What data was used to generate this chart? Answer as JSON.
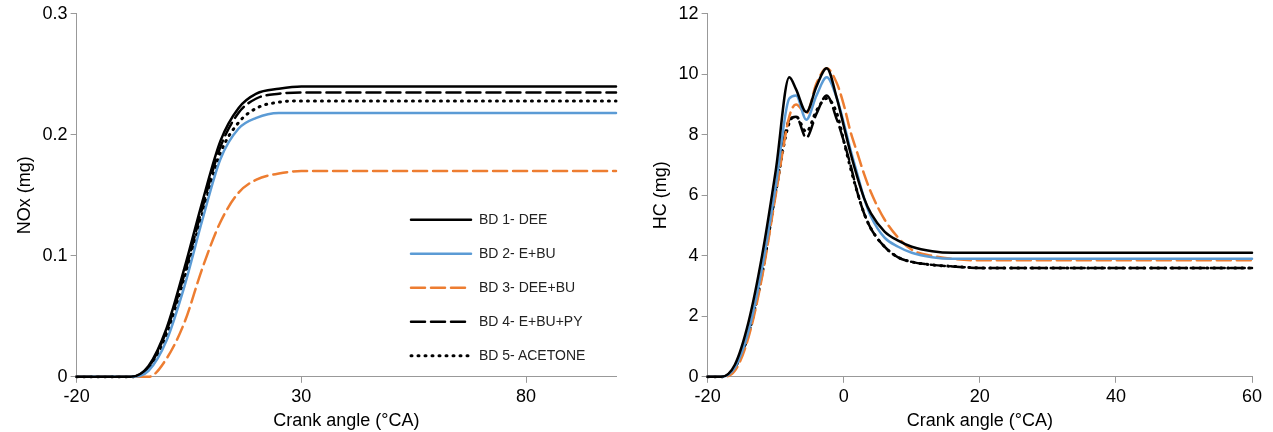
{
  "chart_data": [
    {
      "type": "line",
      "xlabel": "Crank angle (°CA)",
      "ylabel": "NOx (mg)",
      "xlim": [
        -20,
        100
      ],
      "xticks": [
        -20,
        30,
        80
      ],
      "ylim": [
        0,
        0.3
      ],
      "yticks": [
        0,
        0.1,
        0.2,
        0.3
      ],
      "legend": "bottom right",
      "marker": "none",
      "x": [
        -20,
        -8,
        -4,
        0,
        4,
        8,
        12,
        16,
        20,
        25,
        30,
        40,
        60,
        100
      ],
      "series": [
        {
          "name": "BD 1- DEE",
          "color": "#000000",
          "line_style": "solid",
          "values": [
            0,
            0,
            0.009,
            0.04,
            0.09,
            0.145,
            0.195,
            0.222,
            0.234,
            0.238,
            0.24,
            0.24,
            0.24,
            0.24
          ]
        },
        {
          "name": "BD 2- E+BU",
          "color": "#5b9bd5",
          "line_style": "solid",
          "values": [
            0,
            0,
            0.005,
            0.03,
            0.075,
            0.13,
            0.18,
            0.205,
            0.214,
            0.218,
            0.218,
            0.218,
            0.218,
            0.218
          ]
        },
        {
          "name": "BD 3- DEE+BU",
          "color": "#ed7d31",
          "line_style": "dashed",
          "values": [
            0,
            0,
            0,
            0.015,
            0.045,
            0.09,
            0.128,
            0.152,
            0.163,
            0.168,
            0.17,
            0.17,
            0.17,
            0.17
          ]
        },
        {
          "name": "BD 4- E+BU+PY",
          "color": "#000000",
          "line_style": "dashed",
          "values": [
            0,
            0,
            0.008,
            0.038,
            0.085,
            0.14,
            0.19,
            0.218,
            0.23,
            0.234,
            0.235,
            0.235,
            0.235,
            0.235
          ]
        },
        {
          "name": "BD 5- ACETONE",
          "color": "#000000",
          "line_style": "dotted",
          "values": [
            0,
            0,
            0.007,
            0.035,
            0.082,
            0.135,
            0.185,
            0.21,
            0.222,
            0.227,
            0.228,
            0.228,
            0.228,
            0.228
          ]
        }
      ]
    },
    {
      "type": "line",
      "xlabel": "Crank angle (°CA)",
      "ylabel": "HC (mg)",
      "xlim": [
        -20,
        60
      ],
      "xticks": [
        -20,
        0,
        20,
        40,
        60
      ],
      "ylim": [
        0,
        12
      ],
      "yticks": [
        0,
        2,
        4,
        6,
        8,
        10,
        12
      ],
      "marker": "none",
      "x": [
        -20,
        -18,
        -16,
        -14,
        -12,
        -10,
        -8,
        -7,
        -5.5,
        -4,
        -2.5,
        -1,
        0,
        1,
        2,
        3,
        4,
        6,
        8,
        10,
        13,
        16,
        20,
        30,
        45,
        60
      ],
      "series": [
        {
          "color": "#000000",
          "line_style": "solid",
          "values": [
            0,
            0,
            0.4,
            1.8,
            4.0,
            6.8,
            9.9,
            9.5,
            8.75,
            9.6,
            10.2,
            9.2,
            8.3,
            7.4,
            6.6,
            5.9,
            5.4,
            4.8,
            4.5,
            4.3,
            4.15,
            4.1,
            4.1,
            4.1,
            4.1,
            4.1
          ]
        },
        {
          "color": "#5b9bd5",
          "line_style": "solid",
          "values": [
            0,
            0,
            0.3,
            1.5,
            3.6,
            6.3,
            9.2,
            9.3,
            8.5,
            9.3,
            9.9,
            9.2,
            8.4,
            7.5,
            6.7,
            5.9,
            5.3,
            4.6,
            4.3,
            4.1,
            3.95,
            3.9,
            3.9,
            3.9,
            3.9,
            3.9
          ]
        },
        {
          "color": "#ed7d31",
          "line_style": "dashed",
          "values": [
            0,
            0,
            0.2,
            1.3,
            3.3,
            6.0,
            8.6,
            9.0,
            8.7,
            9.7,
            10.2,
            9.7,
            9.0,
            8.1,
            7.4,
            6.7,
            6.1,
            5.2,
            4.6,
            4.2,
            4.0,
            3.9,
            3.85,
            3.85,
            3.85,
            3.85
          ]
        },
        {
          "color": "#000000",
          "line_style": "dashed",
          "values": [
            0,
            0,
            0.3,
            1.4,
            3.4,
            6.1,
            8.5,
            8.6,
            7.9,
            8.7,
            9.3,
            8.5,
            7.8,
            7.0,
            6.1,
            5.4,
            4.9,
            4.3,
            3.95,
            3.8,
            3.7,
            3.65,
            3.6,
            3.6,
            3.6,
            3.6
          ]
        },
        {
          "color": "#000000",
          "line_style": "dotted",
          "values": [
            0,
            0,
            0.3,
            1.4,
            3.4,
            6.1,
            8.4,
            8.6,
            8.1,
            8.8,
            9.2,
            8.7,
            7.8,
            6.9,
            6.1,
            5.4,
            4.9,
            4.3,
            3.95,
            3.8,
            3.7,
            3.65,
            3.6,
            3.6,
            3.6,
            3.6
          ]
        }
      ]
    }
  ]
}
